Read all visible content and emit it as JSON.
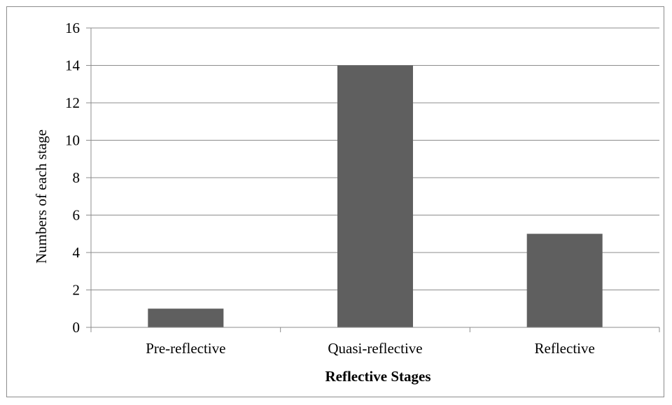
{
  "chart_data": {
    "type": "bar",
    "categories": [
      "Pre-reflective",
      "Quasi-reflective",
      "Reflective"
    ],
    "values": [
      1,
      14,
      5
    ],
    "title": "",
    "xlabel": "Reflective Stages",
    "ylabel": "Numbers of  each stage",
    "ylim": [
      0,
      16
    ],
    "yticks": [
      0,
      2,
      4,
      6,
      8,
      10,
      12,
      14,
      16
    ],
    "grid": true,
    "legend": "none",
    "colors": {
      "bar": "#5f5f5f",
      "grid": "#8c8c8c",
      "axis": "#8c8c8c"
    }
  }
}
